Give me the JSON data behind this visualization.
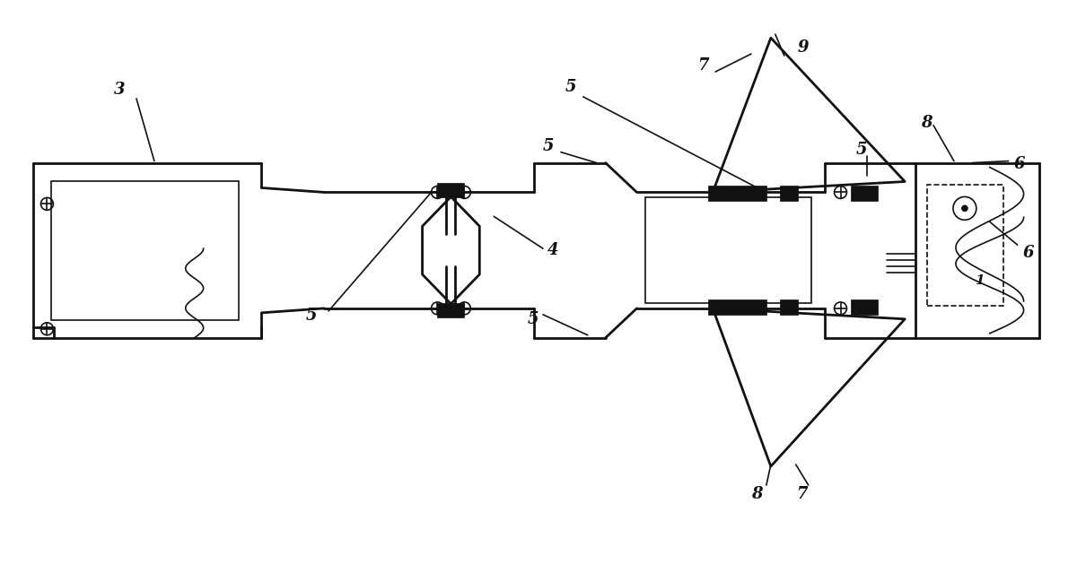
{
  "bg_color": "#ffffff",
  "lc": "#111111",
  "lw": 2.0,
  "lw_thin": 1.2,
  "lw_thick": 3.5,
  "figsize": [
    12.0,
    6.29
  ],
  "dpi": 100,
  "font_size": 13,
  "font_size_small": 11
}
